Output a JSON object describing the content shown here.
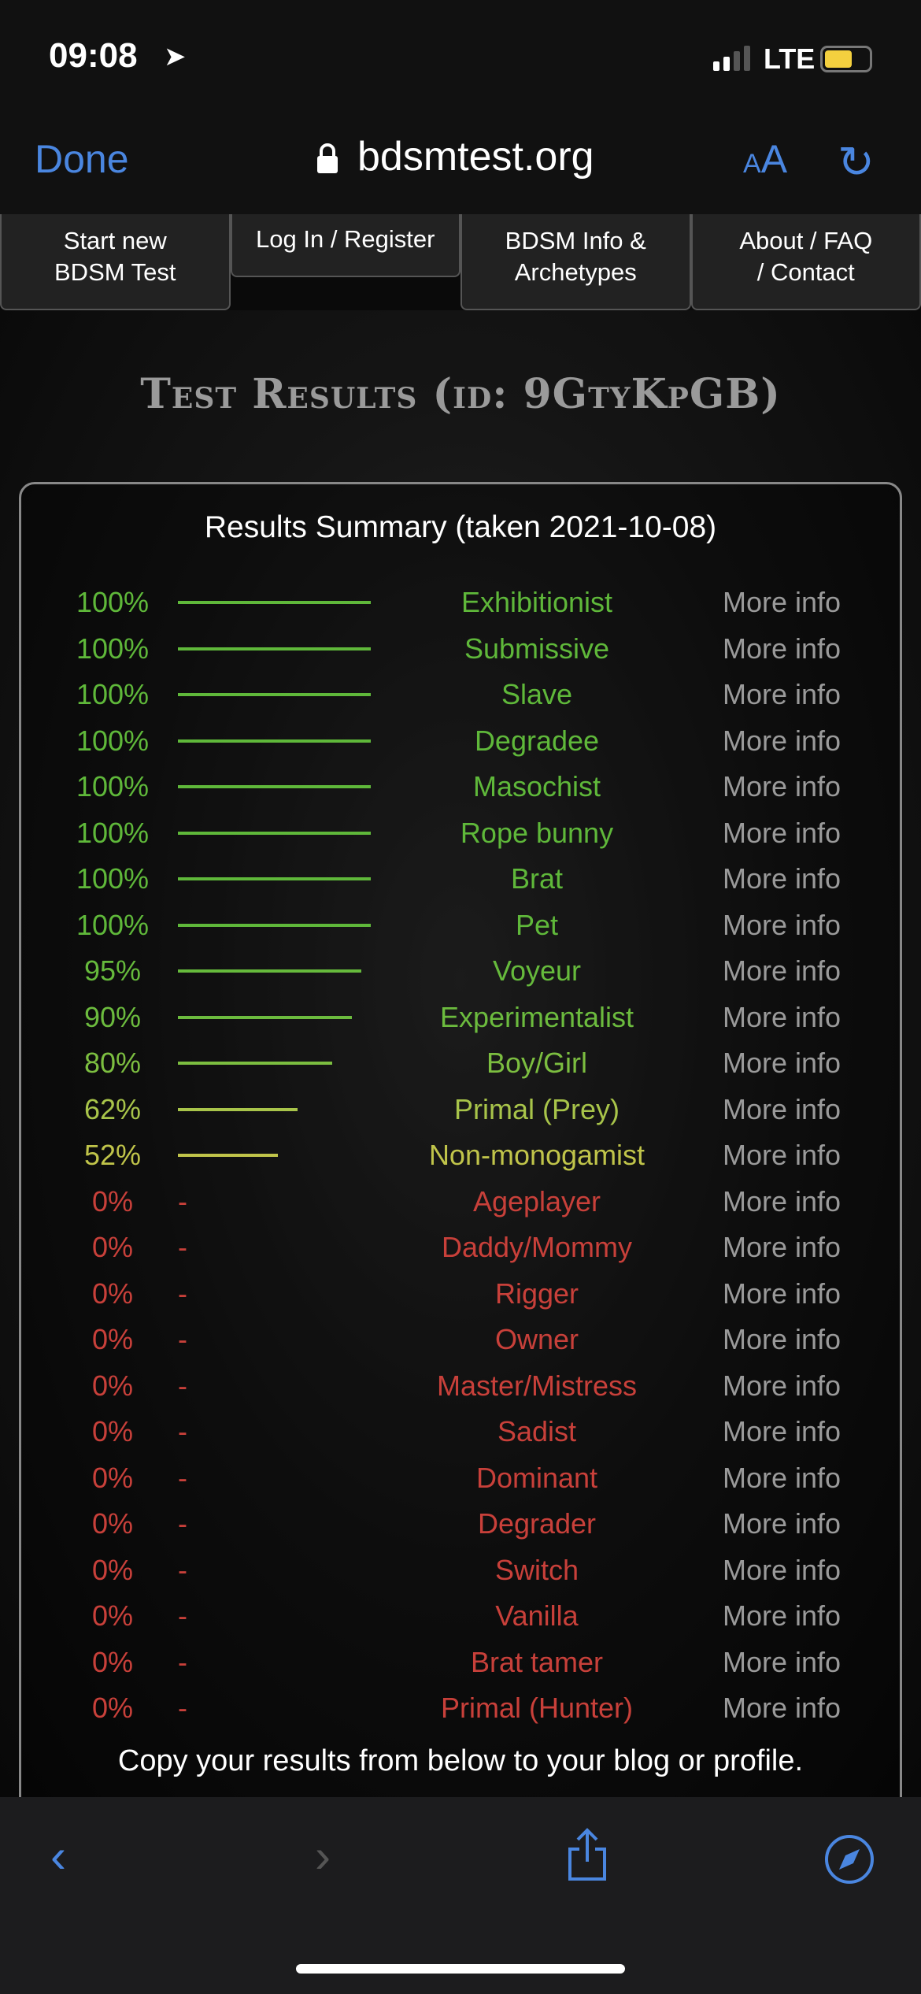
{
  "status": {
    "time": "09:08",
    "network": "LTE",
    "battery_level": 0.5,
    "signal_bars": 2
  },
  "browser": {
    "done": "Done",
    "url": "bdsmtest.org",
    "text_size": "AA",
    "accent": "#4a86e0"
  },
  "nav": [
    {
      "label1": "Start new",
      "label2": "BDSM Test"
    },
    {
      "label1": "Log In / Register",
      "label2": ""
    },
    {
      "label1": "BDSM Info &",
      "label2": "Archetypes"
    },
    {
      "label1": "About / FAQ",
      "label2": "/ Contact"
    }
  ],
  "title": "Test Results (id: 9GtyKpGB)",
  "summary_heading": "Results Summary (taken 2021-10-08)",
  "more_label": "More info",
  "results": [
    {
      "pct": 100,
      "label": "100%",
      "name": "Exhibitionist",
      "color": "#5fb83a"
    },
    {
      "pct": 100,
      "label": "100%",
      "name": "Submissive",
      "color": "#5fb83a"
    },
    {
      "pct": 100,
      "label": "100%",
      "name": "Slave",
      "color": "#5fb83a"
    },
    {
      "pct": 100,
      "label": "100%",
      "name": "Degradee",
      "color": "#5fb83a"
    },
    {
      "pct": 100,
      "label": "100%",
      "name": "Masochist",
      "color": "#5fb83a"
    },
    {
      "pct": 100,
      "label": "100%",
      "name": "Rope bunny",
      "color": "#5fb83a"
    },
    {
      "pct": 100,
      "label": "100%",
      "name": "Brat",
      "color": "#5fb83a"
    },
    {
      "pct": 100,
      "label": "100%",
      "name": "Pet",
      "color": "#5fb83a"
    },
    {
      "pct": 95,
      "label": "95%",
      "name": "Voyeur",
      "color": "#66ba3c"
    },
    {
      "pct": 90,
      "label": "90%",
      "name": "Experimentalist",
      "color": "#6cbb3e"
    },
    {
      "pct": 80,
      "label": "80%",
      "name": "Boy/Girl",
      "color": "#7cbe40"
    },
    {
      "pct": 62,
      "label": "62%",
      "name": "Primal (Prey)",
      "color": "#a8c44a"
    },
    {
      "pct": 52,
      "label": "52%",
      "name": "Non-monogamist",
      "color": "#c0c44a"
    },
    {
      "pct": 0,
      "label": "0%",
      "name": "Ageplayer",
      "color": "#c8403a"
    },
    {
      "pct": 0,
      "label": "0%",
      "name": "Daddy/Mommy",
      "color": "#c8403a"
    },
    {
      "pct": 0,
      "label": "0%",
      "name": "Rigger",
      "color": "#c8403a"
    },
    {
      "pct": 0,
      "label": "0%",
      "name": "Owner",
      "color": "#c8403a"
    },
    {
      "pct": 0,
      "label": "0%",
      "name": "Master/Mistress",
      "color": "#c8403a"
    },
    {
      "pct": 0,
      "label": "0%",
      "name": "Sadist",
      "color": "#c8403a"
    },
    {
      "pct": 0,
      "label": "0%",
      "name": "Dominant",
      "color": "#c8403a"
    },
    {
      "pct": 0,
      "label": "0%",
      "name": "Degrader",
      "color": "#c8403a"
    },
    {
      "pct": 0,
      "label": "0%",
      "name": "Switch",
      "color": "#c8403a"
    },
    {
      "pct": 0,
      "label": "0%",
      "name": "Vanilla",
      "color": "#c8403a"
    },
    {
      "pct": 0,
      "label": "0%",
      "name": "Brat tamer",
      "color": "#c8403a"
    },
    {
      "pct": 0,
      "label": "0%",
      "name": "Primal (Hunter)",
      "color": "#c8403a"
    }
  ],
  "zero_marker": "-",
  "footer": "Copy your results from below to your blog or profile.",
  "toolbar": {
    "back": "back-icon",
    "forward": "forward-icon",
    "share": "share-icon",
    "safari": "compass-icon"
  }
}
